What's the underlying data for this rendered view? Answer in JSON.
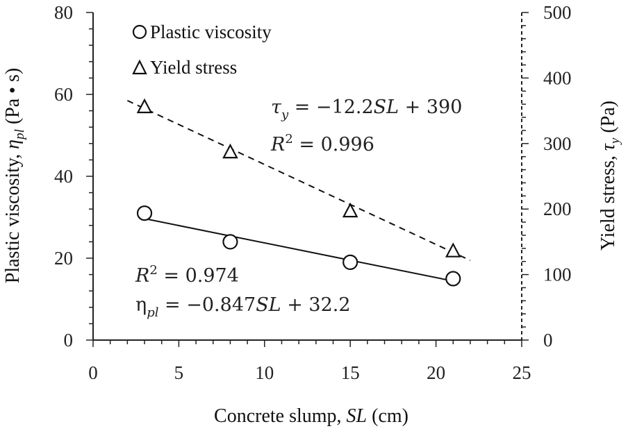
{
  "chart_data": {
    "type": "scatter",
    "x": [
      3,
      8,
      15,
      21
    ],
    "xlabel": "Concrete slump, SL (cm)",
    "xlim": [
      0,
      25
    ],
    "x_ticks": [
      "0",
      "5",
      "10",
      "15",
      "20",
      "25"
    ],
    "y_left_label": "Plastic viscosity, ηpl (Pa • s)",
    "y_left_lim": [
      0,
      80
    ],
    "y_left_ticks": [
      "0",
      "20",
      "40",
      "60",
      "80"
    ],
    "y_right_label": "Yield stress, τy (Pa)",
    "y_right_lim": [
      0,
      500
    ],
    "y_right_ticks": [
      "0",
      "100",
      "200",
      "300",
      "400",
      "500"
    ],
    "grid": false,
    "legend_position": "top-left",
    "series": [
      {
        "name": "Plastic viscosity",
        "axis": "left",
        "marker": "circle",
        "y": [
          31,
          24,
          19,
          15
        ],
        "fit": {
          "style": "solid",
          "slope": -0.847,
          "intercept": 32.2,
          "x_range": [
            3,
            21
          ]
        },
        "equation": "ηpl = −0.847SL + 32.2",
        "r2": "R2 = 0.974"
      },
      {
        "name": "Yield stress",
        "axis": "right",
        "marker": "triangle",
        "y": [
          357,
          288,
          198,
          137
        ],
        "fit": {
          "style": "dashed",
          "slope": -12.2,
          "intercept": 390,
          "x_range": [
            2,
            22
          ]
        },
        "equation": "τy = −12.2SL + 390",
        "r2": "R2 = 0.996"
      }
    ]
  }
}
